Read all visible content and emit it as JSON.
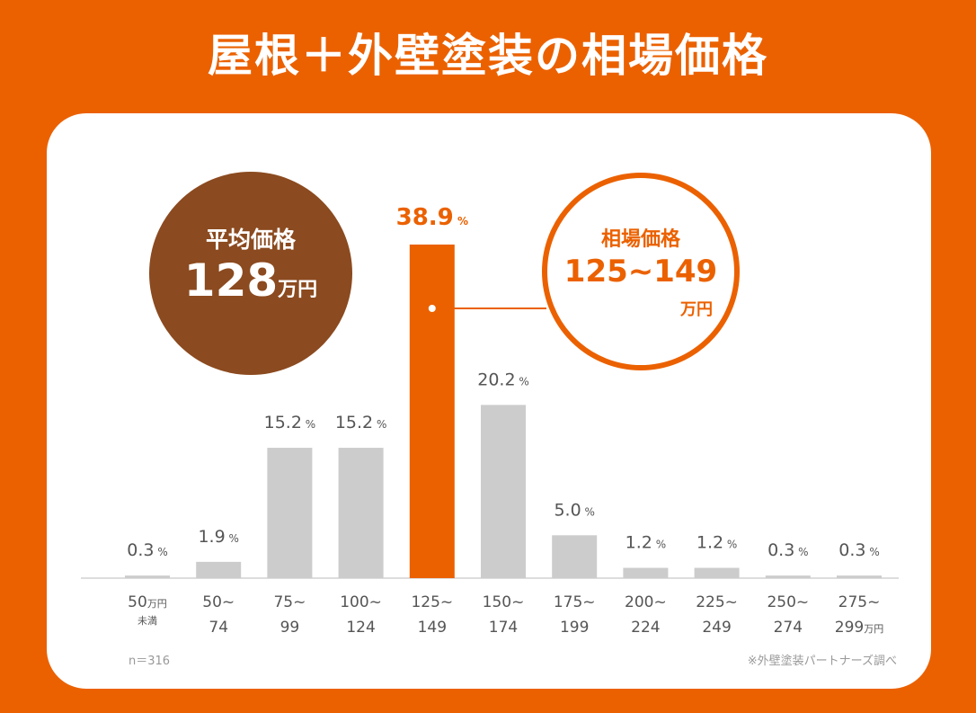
{
  "title": "屋根＋外壁塗装の相場価格",
  "average": {
    "label": "平均価格",
    "value": "128",
    "unit": "万円"
  },
  "market_range": {
    "label": "相場価格",
    "value": "125~149",
    "unit": "万円"
  },
  "footnote_n": "n＝316",
  "footnote_source": "※外壁塗装パートナーズ調べ",
  "colors": {
    "background": "#EB6100",
    "highlight_bar": "#EB6100",
    "bar": "#CCCCCC",
    "avg_circle": "#8B4A1F"
  },
  "chart_data": {
    "type": "bar",
    "title": "屋根＋外壁塗装の相場価格",
    "xlabel": "",
    "ylabel": "",
    "value_suffix": "%",
    "unit_suffix": "万円",
    "categories": [
      {
        "line1": "50",
        "line1_unit": "万円",
        "line2": "未満"
      },
      {
        "line1": "50~",
        "line1_unit": "",
        "line2": "74"
      },
      {
        "line1": "75~",
        "line1_unit": "",
        "line2": "99"
      },
      {
        "line1": "100~",
        "line1_unit": "",
        "line2": "124"
      },
      {
        "line1": "125~",
        "line1_unit": "",
        "line2": "149"
      },
      {
        "line1": "150~",
        "line1_unit": "",
        "line2": "174"
      },
      {
        "line1": "175~",
        "line1_unit": "",
        "line2": "199"
      },
      {
        "line1": "200~",
        "line1_unit": "",
        "line2": "224"
      },
      {
        "line1": "225~",
        "line1_unit": "",
        "line2": "249"
      },
      {
        "line1": "250~",
        "line1_unit": "",
        "line2": "274"
      },
      {
        "line1": "275~",
        "line1_unit": "",
        "line2": "299",
        "line2_unit": "万円"
      }
    ],
    "values": [
      0.3,
      1.9,
      15.2,
      15.2,
      38.9,
      20.2,
      5.0,
      1.2,
      1.2,
      0.3,
      0.3
    ],
    "highlight_index": 4,
    "ylim": [
      0,
      38.9
    ],
    "grid": false,
    "legend": "none"
  }
}
